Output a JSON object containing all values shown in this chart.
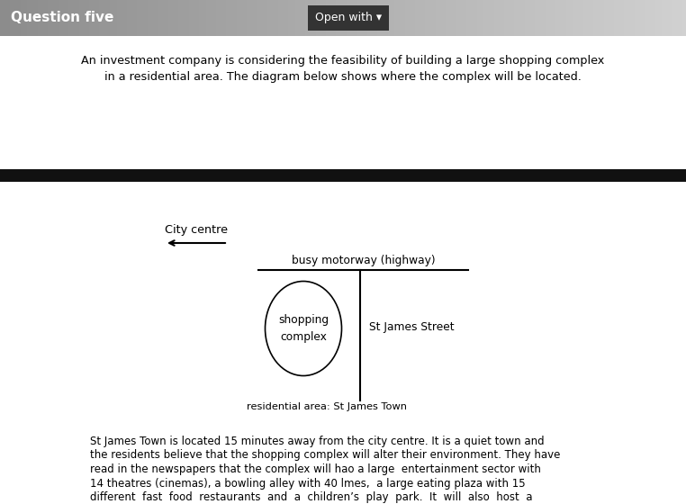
{
  "title": "Question five",
  "open_with_btn": "Open with ▾",
  "intro_text_line1": "An investment company is considering the feasibility of building a large shopping complex",
  "intro_text_line2": "in a residential area. The diagram below shows where the complex will be located.",
  "city_centre_label": "City centre",
  "motorway_label": "busy motorway (highway)",
  "shopping_complex_label": "shopping\ncomplex",
  "street_label": "St James Street",
  "residential_label": "residential area: St James Town",
  "body_text_line1": "St James Town is located 15 minutes away from the city centre. It is a quiet town and",
  "body_text_line2": "the residents believe that the shopping complex will alter their environment. They have",
  "body_text_line3": "read in the newspapers that the complex will hao a large  entertainment sector with",
  "body_text_line4": "14 theatres (cinemas), a bowling alley with 40 lmes,  a large eating plaza with 15",
  "body_text_line5": "different  fast  food  restaurants  and  a  children’s  play  park.  It  will  also  host  a",
  "bg_white": "#ffffff",
  "bg_dark_bar": "#111111",
  "text_color": "#000000",
  "header_text_color": "#ffffff",
  "btn_bg": "#333333",
  "btn_text_color": "#ffffff",
  "header_gradient_left": "#888888",
  "header_gradient_right": "#cccccc"
}
